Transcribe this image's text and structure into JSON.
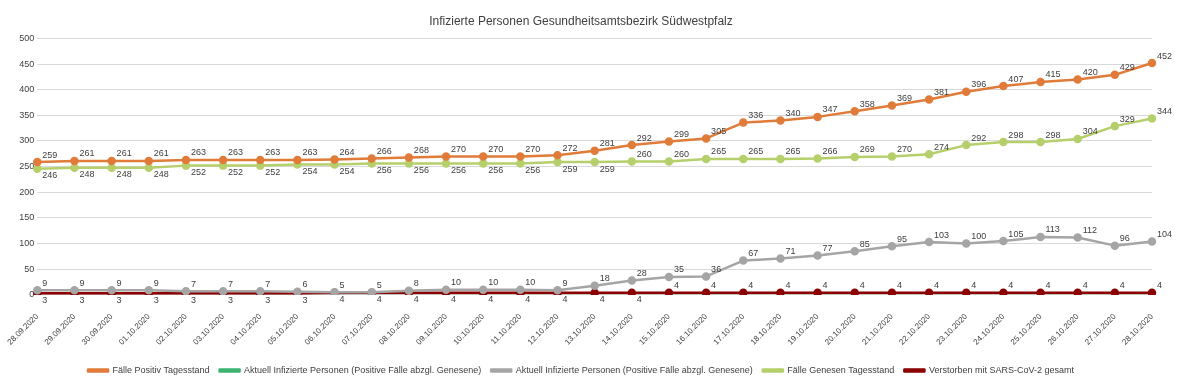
{
  "chart_data": {
    "type": "line",
    "title": "Infizierte Personen Gesundheitsamtsbezirk Südwestpfalz",
    "categories": [
      "28.09.2020",
      "29.09.2020",
      "30.09.2020",
      "01.10.2020",
      "02.10.2020",
      "03.10.2020",
      "04.10.2020",
      "05.10.2020",
      "06.10.2020",
      "07.10.2020",
      "08.10.2020",
      "09.10.2020",
      "10.10.2020",
      "11.10.2020",
      "12.10.2020",
      "13.10.2020",
      "14.10.2020",
      "15.10.2020",
      "16.10.2020",
      "17.10.2020",
      "18.10.2020",
      "19.10.2020",
      "20.10.2020",
      "21.10.2020",
      "22.10.2020",
      "23.10.2020",
      "24.10.2020",
      "25.10.2020",
      "26.10.2020",
      "27.10.2020",
      "28.10.2020"
    ],
    "series": [
      {
        "name": "Fälle Positiv Tagesstand",
        "color": "#e07b39",
        "values": [
          259,
          261,
          261,
          261,
          263,
          263,
          263,
          263,
          264,
          266,
          268,
          270,
          270,
          270,
          272,
          281,
          292,
          299,
          305,
          336,
          340,
          347,
          358,
          369,
          381,
          396,
          407,
          415,
          420,
          429,
          452
        ]
      },
      {
        "name": "Aktuell Infizierte Personen (Positive Fälle abzgl. Genesene)",
        "color": "#3cb371",
        "values": [
          null,
          null,
          null,
          null,
          null,
          null,
          null,
          null,
          null,
          null,
          null,
          null,
          null,
          null,
          null,
          null,
          null,
          null,
          null,
          null,
          null,
          null,
          null,
          null,
          null,
          null,
          null,
          null,
          null,
          null,
          null
        ]
      },
      {
        "name": "Aktuell Infizierte Personen (Positive Fälle abzgl. Genesene)",
        "color": "#a5a5a5",
        "values": [
          9,
          9,
          9,
          9,
          7,
          7,
          7,
          6,
          5,
          5,
          8,
          10,
          10,
          10,
          9,
          18,
          28,
          35,
          36,
          67,
          71,
          77,
          85,
          95,
          103,
          100,
          105,
          113,
          112,
          96,
          104
        ]
      },
      {
        "name": "Fälle Genesen Tagesstand",
        "color": "#b5cf6b",
        "values": [
          246,
          248,
          248,
          248,
          252,
          252,
          252,
          254,
          254,
          256,
          256,
          256,
          256,
          256,
          259,
          259,
          260,
          260,
          265,
          265,
          265,
          266,
          269,
          270,
          274,
          292,
          298,
          298,
          304,
          329,
          344
        ]
      },
      {
        "name": "Verstorben mit SARS-CoV-2 gesamt",
        "color": "#8b0000",
        "values": [
          3,
          3,
          3,
          3,
          3,
          3,
          3,
          3,
          4,
          4,
          4,
          4,
          4,
          4,
          4,
          4,
          4,
          4,
          4,
          4,
          4,
          4,
          4,
          4,
          4,
          4,
          4,
          4,
          4,
          4,
          4
        ]
      }
    ],
    "ylim": [
      0,
      500
    ],
    "yticks": [
      0,
      50,
      100,
      150,
      200,
      250,
      300,
      350,
      400,
      450,
      500
    ],
    "grid": "y",
    "legend": "bottom",
    "marker": "circle",
    "line_style": "solid",
    "data_labels": true
  }
}
